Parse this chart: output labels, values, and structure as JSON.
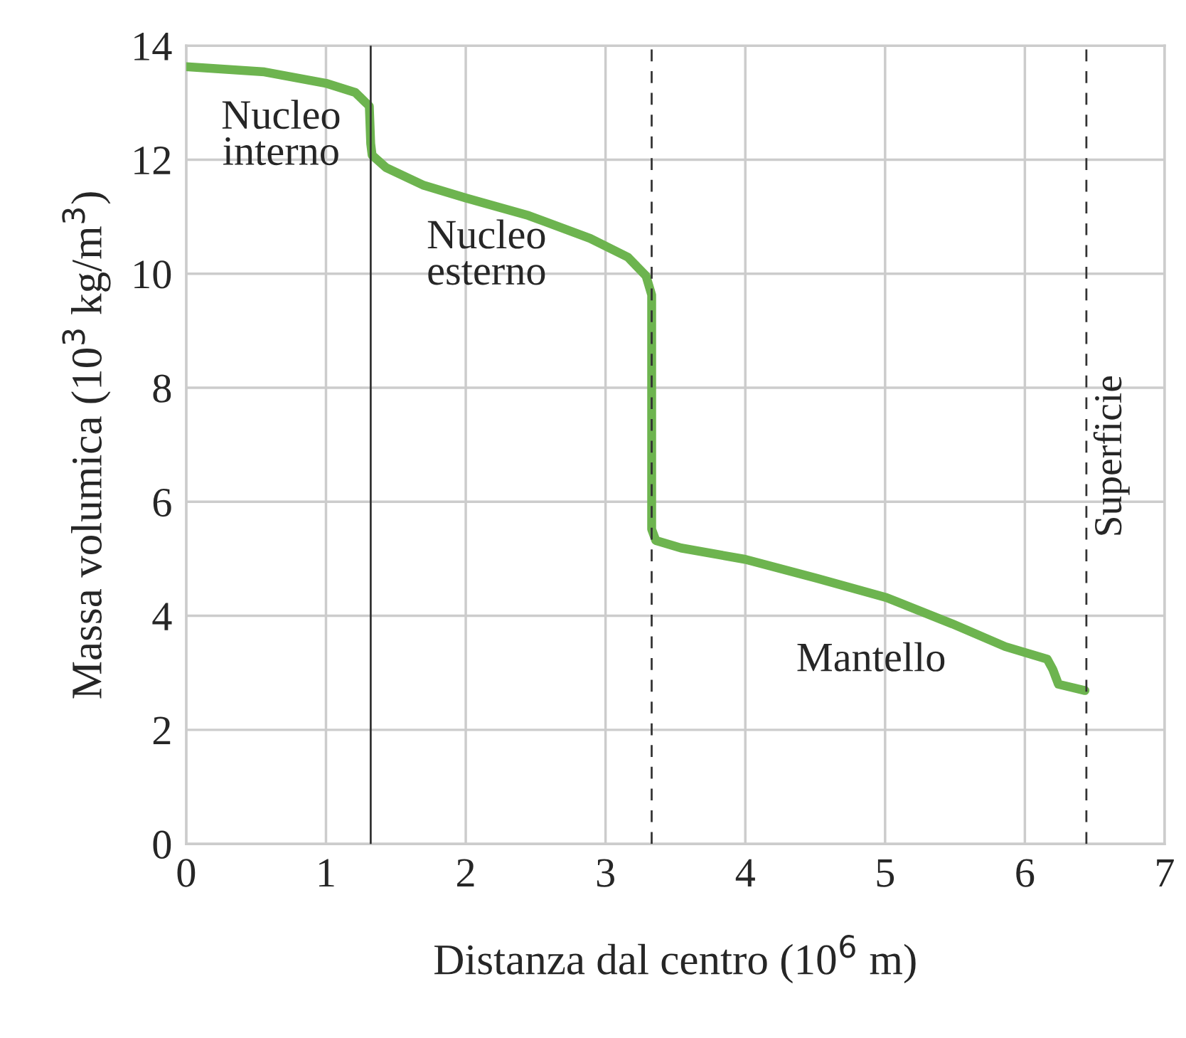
{
  "chart_data": {
    "type": "line",
    "xlabel": "Distanza dal centro (10$^{6}$ m)",
    "ylabel": "Massa volumica (10$^{3}$ kg/m$^{3}$)",
    "xlim": [
      0,
      7
    ],
    "ylim": [
      0,
      14
    ],
    "xticks": [
      0,
      1,
      2,
      3,
      4,
      5,
      6,
      7
    ],
    "yticks": [
      0,
      2,
      4,
      6,
      8,
      10,
      12,
      14
    ],
    "grid": true,
    "marker": "none",
    "line_style": "solid",
    "series": [
      {
        "color": "#6db44f",
        "x": [
          0,
          0.56,
          1.0,
          1.21,
          1.31,
          1.32,
          1.33,
          1.43,
          1.7,
          2.0,
          2.45,
          2.89,
          3.16,
          3.29,
          3.33,
          3.33,
          3.36,
          3.54,
          4.0,
          4.51,
          5.01,
          5.48,
          5.86,
          6.16,
          6.2,
          6.24,
          6.43
        ],
        "values": [
          13.63,
          13.54,
          13.34,
          13.18,
          12.94,
          12.28,
          12.08,
          11.86,
          11.55,
          11.33,
          11.02,
          10.62,
          10.29,
          9.96,
          9.63,
          5.52,
          5.32,
          5.19,
          4.99,
          4.66,
          4.32,
          3.86,
          3.46,
          3.24,
          3.06,
          2.8,
          2.69
        ]
      }
    ],
    "ref_lines": [
      {
        "axis": "x",
        "value": 1.32,
        "line_style": "solid",
        "color": "#333333"
      },
      {
        "axis": "x",
        "value": 3.33,
        "line_style": "dashed",
        "color": "#333333"
      },
      {
        "axis": "x",
        "value": 6.44,
        "line_style": "dashed",
        "color": "#333333",
        "label": "Superficie"
      }
    ],
    "annotations": [
      "Nucleo\ninterno",
      "Nucleo\nesterno",
      "Mantello"
    ]
  }
}
